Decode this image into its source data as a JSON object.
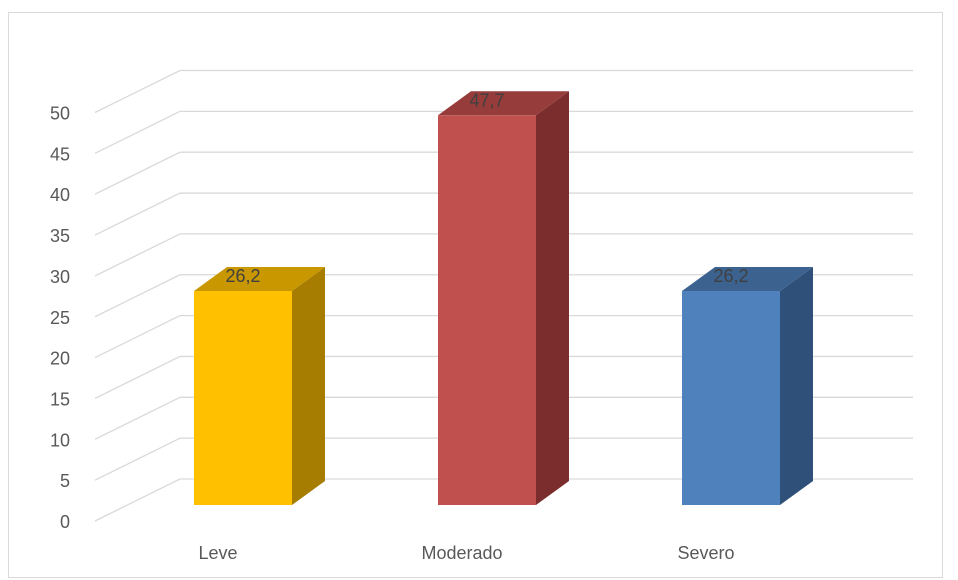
{
  "chart_data": {
    "type": "bar",
    "title": "",
    "xlabel": "",
    "ylabel": "",
    "categories": [
      "Leve",
      "Moderado",
      "Severo"
    ],
    "values": [
      26.2,
      47.7,
      26.2
    ],
    "value_labels": [
      "26,2",
      "47,7",
      "26,2"
    ],
    "ylim": [
      0,
      50
    ],
    "yticks": [
      "0",
      "5",
      "10",
      "15",
      "20",
      "25",
      "30",
      "35",
      "40",
      "45",
      "50"
    ],
    "grid": true,
    "legend": "none",
    "style": "3d-column",
    "colors": [
      "#ffc000",
      "#c0504d",
      "#4f81bd"
    ],
    "side_colors": [
      "#a67d00",
      "#7b2c2c",
      "#2f5079"
    ],
    "top_colors": [
      "#c99700",
      "#963c3a",
      "#3c628f"
    ]
  }
}
